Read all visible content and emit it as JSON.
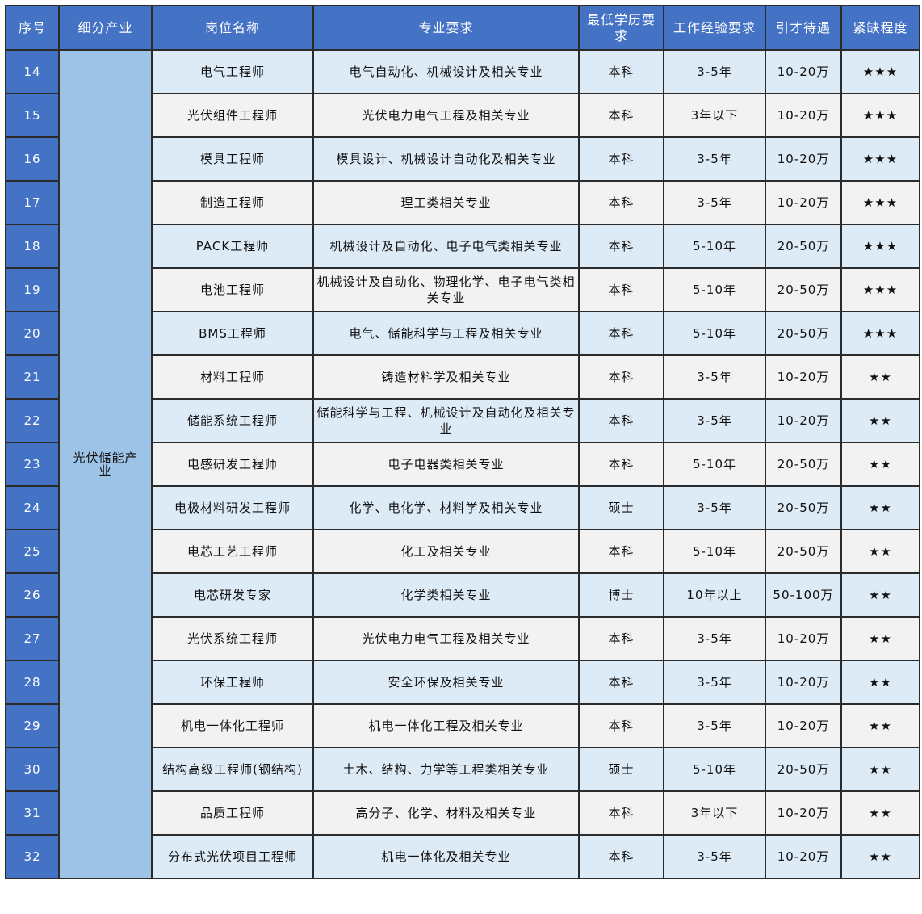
{
  "headers": [
    "序号",
    "细分产业",
    "岗位名称",
    "专业要求",
    "最低学历要求",
    "工作经验要求",
    "引才待遇",
    "紧缺程度"
  ],
  "industry": "光伏储能产业",
  "colors": {
    "header": "#4472C4",
    "industry": "#9DC3E6",
    "row_a": "#DDEBF7",
    "row_b": "#F2F2F2"
  },
  "rows": [
    [
      "14",
      "电气工程师",
      "电气自动化、机械设计及相关专业",
      "本科",
      "3-5年",
      "10-20万",
      "★★★"
    ],
    [
      "15",
      "光伏组件工程师",
      "光伏电力电气工程及相关专业",
      "本科",
      "3年以下",
      "10-20万",
      "★★★"
    ],
    [
      "16",
      "模具工程师",
      "模具设计、机械设计自动化及相关专业",
      "本科",
      "3-5年",
      "10-20万",
      "★★★"
    ],
    [
      "17",
      "制造工程师",
      "理工类相关专业",
      "本科",
      "3-5年",
      "10-20万",
      "★★★"
    ],
    [
      "18",
      "PACK工程师",
      "机械设计及自动化、电子电气类相关专业",
      "本科",
      "5-10年",
      "20-50万",
      "★★★"
    ],
    [
      "19",
      "电池工程师",
      "机械设计及自动化、物理化学、电子电气类相关专业",
      "本科",
      "5-10年",
      "20-50万",
      "★★★"
    ],
    [
      "20",
      "BMS工程师",
      "电气、储能科学与工程及相关专业",
      "本科",
      "5-10年",
      "20-50万",
      "★★★"
    ],
    [
      "21",
      "材料工程师",
      "铸造材料学及相关专业",
      "本科",
      "3-5年",
      "10-20万",
      "★★"
    ],
    [
      "22",
      "储能系统工程师",
      "储能科学与工程、机械设计及自动化及相关专业",
      "本科",
      "3-5年",
      "10-20万",
      "★★"
    ],
    [
      "23",
      "电感研发工程师",
      "电子电器类相关专业",
      "本科",
      "5-10年",
      "20-50万",
      "★★"
    ],
    [
      "24",
      "电极材料研发工程师",
      "化学、电化学、材料学及相关专业",
      "硕士",
      "3-5年",
      "20-50万",
      "★★"
    ],
    [
      "25",
      "电芯工艺工程师",
      "化工及相关专业",
      "本科",
      "5-10年",
      "20-50万",
      "★★"
    ],
    [
      "26",
      "电芯研发专家",
      "化学类相关专业",
      "博士",
      "10年以上",
      "50-100万",
      "★★"
    ],
    [
      "27",
      "光伏系统工程师",
      "光伏电力电气工程及相关专业",
      "本科",
      "3-5年",
      "10-20万",
      "★★"
    ],
    [
      "28",
      "环保工程师",
      "安全环保及相关专业",
      "本科",
      "3-5年",
      "10-20万",
      "★★"
    ],
    [
      "29",
      "机电一体化工程师",
      "机电一体化工程及相关专业",
      "本科",
      "3-5年",
      "10-20万",
      "★★"
    ],
    [
      "30",
      "结构高级工程师(钢结构)",
      "土木、结构、力学等工程类相关专业",
      "硕士",
      "5-10年",
      "20-50万",
      "★★"
    ],
    [
      "31",
      "品质工程师",
      "高分子、化学、材料及相关专业",
      "本科",
      "3年以下",
      "10-20万",
      "★★"
    ],
    [
      "32",
      "分布式光伏项目工程师",
      "机电一体化及相关专业",
      "本科",
      "3-5年",
      "10-20万",
      "★★"
    ]
  ]
}
